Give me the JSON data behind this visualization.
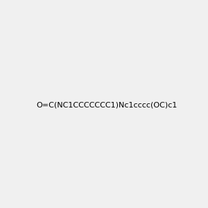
{
  "smiles": "O=C(NC1CCCCCCC1)Nc1cccc(OC)c1",
  "image_size": 300,
  "background_color": "#f0f0f0",
  "title": ""
}
